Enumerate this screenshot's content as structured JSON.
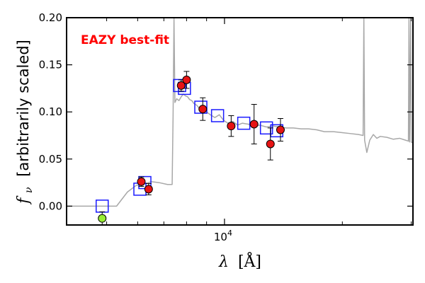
{
  "chart_data": {
    "type": "scatter",
    "title": "",
    "annotation": {
      "text": "EAZY best-fit",
      "color": "#ff0000"
    },
    "xlabel": {
      "symbol": "λ",
      "unit": "[Å]"
    },
    "ylabel": {
      "symbol": "f",
      "subscript": "ν",
      "text": "[arbitrarily scaled]"
    },
    "x_scale": "log",
    "xlim": [
      3950,
      30300
    ],
    "ylim": [
      -0.02,
      0.2
    ],
    "x_tick_labels": [
      {
        "x": 10000,
        "base": "10",
        "exp": "4"
      }
    ],
    "x_minor_ticks": [
      5000,
      6000,
      7000,
      8000,
      9000,
      20000,
      30000
    ],
    "y_ticks": [
      0.0,
      0.05,
      0.1,
      0.15,
      0.2
    ],
    "y_tick_labels": [
      "0.00",
      "0.05",
      "0.10",
      "0.15",
      "0.20"
    ],
    "grid": false,
    "colors": {
      "model": "#a8a8a8",
      "model_flux": "#1a1aff",
      "observed": "#e61414",
      "upper_limit": "#99ee33",
      "errorbar": "#000000"
    },
    "series": [
      {
        "kind": "spectrum",
        "points": [
          [
            3950,
            0.0
          ],
          [
            5300,
            0.0
          ],
          [
            5650,
            0.015
          ],
          [
            5950,
            0.022
          ],
          [
            6300,
            0.024
          ],
          [
            6500,
            0.026
          ],
          [
            6800,
            0.025
          ],
          [
            7150,
            0.023
          ],
          [
            7350,
            0.023
          ],
          [
            7390,
            0.095
          ],
          [
            7430,
            0.2
          ],
          [
            7470,
            0.11
          ],
          [
            7550,
            0.114
          ],
          [
            7650,
            0.112
          ],
          [
            7750,
            0.116
          ],
          [
            7850,
            0.119
          ],
          [
            7950,
            0.117
          ],
          [
            8050,
            0.116
          ],
          [
            8150,
            0.113
          ],
          [
            8250,
            0.112
          ],
          [
            8350,
            0.109
          ],
          [
            8500,
            0.107
          ],
          [
            8650,
            0.103
          ],
          [
            8800,
            0.101
          ],
          [
            9000,
            0.1
          ],
          [
            9200,
            0.097
          ],
          [
            9450,
            0.094
          ],
          [
            9700,
            0.097
          ],
          [
            9950,
            0.091
          ],
          [
            10200,
            0.088
          ],
          [
            10500,
            0.09
          ],
          [
            10800,
            0.086
          ],
          [
            11100,
            0.088
          ],
          [
            11500,
            0.087
          ],
          [
            11900,
            0.085
          ],
          [
            12300,
            0.086
          ],
          [
            12800,
            0.084
          ],
          [
            13300,
            0.085
          ],
          [
            13800,
            0.084
          ],
          [
            14400,
            0.083
          ],
          [
            15000,
            0.083
          ],
          [
            15700,
            0.082
          ],
          [
            16400,
            0.082
          ],
          [
            17200,
            0.081
          ],
          [
            18000,
            0.079
          ],
          [
            19000,
            0.079
          ],
          [
            20000,
            0.078
          ],
          [
            21000,
            0.077
          ],
          [
            22000,
            0.076
          ],
          [
            22600,
            0.075
          ],
          [
            22700,
            0.2
          ],
          [
            22800,
            0.07
          ],
          [
            23100,
            0.057
          ],
          [
            23500,
            0.07
          ],
          [
            24000,
            0.076
          ],
          [
            24500,
            0.072
          ],
          [
            25000,
            0.074
          ],
          [
            26000,
            0.073
          ],
          [
            27000,
            0.071
          ],
          [
            28000,
            0.072
          ],
          [
            29000,
            0.07
          ],
          [
            29500,
            0.069
          ],
          [
            29600,
            0.2
          ],
          [
            29700,
            0.068
          ],
          [
            29900,
            0.2
          ],
          [
            30000,
            0.068
          ],
          [
            30300,
            0.067
          ]
        ]
      },
      {
        "kind": "model_flux",
        "points": [
          [
            4870,
            0.0
          ],
          [
            6080,
            0.018
          ],
          [
            6260,
            0.025
          ],
          [
            7680,
            0.128
          ],
          [
            7900,
            0.125
          ],
          [
            8700,
            0.105
          ],
          [
            9600,
            0.096
          ],
          [
            11200,
            0.088
          ],
          [
            12800,
            0.083
          ],
          [
            13600,
            0.08
          ]
        ]
      },
      {
        "kind": "observed",
        "points": [
          {
            "x": 6130,
            "y": 0.026,
            "err": 0.005
          },
          {
            "x": 6400,
            "y": 0.018,
            "err": 0.006
          },
          {
            "x": 7750,
            "y": 0.128,
            "err": 0.006
          },
          {
            "x": 8000,
            "y": 0.134,
            "err": 0.009
          },
          {
            "x": 8800,
            "y": 0.103,
            "err": 0.012
          },
          {
            "x": 10400,
            "y": 0.085,
            "err": 0.011
          },
          {
            "x": 11900,
            "y": 0.087,
            "err": 0.021
          },
          {
            "x": 13100,
            "y": 0.066,
            "err": 0.017
          },
          {
            "x": 13900,
            "y": 0.081,
            "err": 0.012
          }
        ]
      },
      {
        "kind": "upper_limit",
        "points": [
          {
            "x": 4870,
            "y": -0.013,
            "err": 0.007
          }
        ]
      }
    ]
  }
}
